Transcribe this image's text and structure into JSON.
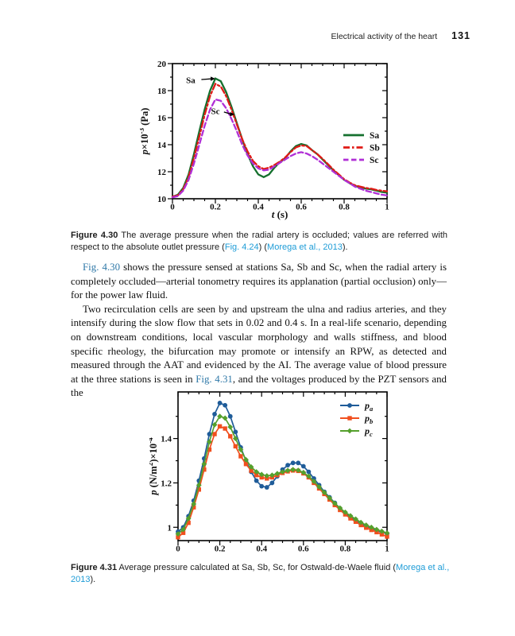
{
  "page": {
    "header": {
      "running_title": "Electrical activity of the heart",
      "page_number": "131"
    }
  },
  "colors": {
    "caption_link": "#1e9cd7",
    "body_link": "#3079a8",
    "sa_green": "#15702e",
    "sb_red": "#e01a16",
    "sc_magenta": "#b02fd6",
    "pa_blue": "#1f5c99",
    "pb_orange": "#f14f1e",
    "pc_green": "#55a02d",
    "axis": "#000000"
  },
  "figure30": {
    "caption": [
      {
        "t": "Figure 4.30",
        "b": 1
      },
      {
        "t": " The average pressure when the radial artery is occluded; values are referred with respect to the absolute outlet pressure ("
      },
      {
        "t": "Fig. 4.24",
        "link": 1
      },
      {
        "t": ") ("
      },
      {
        "t": "Morega et al., 2013",
        "link": 1
      },
      {
        "t": ")."
      }
    ]
  },
  "figure31": {
    "caption": [
      {
        "t": "Figure 4.31",
        "b": 1
      },
      {
        "t": "  Average pressure calculated at Sa, Sb, Sc, for Ostwald-de-Waele fluid ("
      },
      {
        "t": "Morega et al., 2013",
        "link": 1
      },
      {
        "t": ")."
      }
    ]
  },
  "body": {
    "paragraphs": [
      [
        {
          "t": "Fig. 4.30",
          "link": 1
        },
        {
          "t": " shows the pressure sensed at stations Sa, Sb and Sc, when the radial artery is completely occluded—arterial tonometry requires its applanation (partial occlusion) only—for the power law fluid."
        }
      ],
      [
        {
          "t": "Two recirculation cells are seen by and upstream the ulna and radius arteries, and they intensify during the slow flow that sets in 0.02 and 0.4 s. In a real-life scenario, depending on downstream conditions, local vascular morphology and walls stiffness, and blood specific rheology, the bifurcation may promote or intensify an RPW, as detected and measured through the AAT and evidenced by the AI. The average value of blood pressure at the three stations is seen in "
        },
        {
          "t": "Fig. 4.31",
          "link": 1
        },
        {
          "t": ", and the voltages produced by the PZT sensors and the"
        }
      ]
    ]
  },
  "chart_data": [
    {
      "type": "line",
      "title": "",
      "xlabel": "t (s)",
      "ylabel": "p×10^-3 (Pa)",
      "xlabel_parts": [
        {
          "t": "t",
          "i": 1
        },
        {
          "t": " (s)"
        }
      ],
      "ylabel_parts": [
        {
          "t": "p",
          "i": 1
        },
        {
          "t": "×10"
        },
        {
          "t": "-3",
          "sup": 1
        },
        {
          "t": " (Pa)"
        }
      ],
      "xlim": [
        0,
        1
      ],
      "ylim": [
        10,
        20
      ],
      "xticks": [
        0,
        0.2,
        0.4,
        0.6,
        0.8,
        1
      ],
      "xtick_labels": [
        "0",
        "0.2",
        "0.4",
        "0.6",
        "0.8",
        "1"
      ],
      "yticks": [
        10,
        12,
        14,
        16,
        18,
        20
      ],
      "ytick_labels": [
        "10",
        "12",
        "14",
        "16",
        "18",
        "20"
      ],
      "x_minor": [
        0.05,
        0.1,
        0.15,
        0.25,
        0.3,
        0.35,
        0.45,
        0.5,
        0.55,
        0.65,
        0.7,
        0.75,
        0.85,
        0.9,
        0.95
      ],
      "y_minor": [
        11,
        13,
        15,
        17,
        19
      ],
      "grid": false,
      "legend_position": "middle-right",
      "x": [
        0,
        0.025,
        0.05,
        0.075,
        0.1,
        0.125,
        0.15,
        0.175,
        0.2,
        0.225,
        0.25,
        0.275,
        0.3,
        0.325,
        0.35,
        0.375,
        0.4,
        0.425,
        0.45,
        0.475,
        0.5,
        0.525,
        0.55,
        0.575,
        0.6,
        0.625,
        0.65,
        0.675,
        0.7,
        0.725,
        0.75,
        0.775,
        0.8,
        0.825,
        0.85,
        0.875,
        0.9,
        0.925,
        0.95,
        0.975,
        1
      ],
      "series": [
        {
          "name": "Sa",
          "color": "#15702e",
          "style": "solid",
          "marker": null,
          "values": [
            10.15,
            10.3,
            10.8,
            11.8,
            13.3,
            15.0,
            16.6,
            18.0,
            18.9,
            18.7,
            17.9,
            16.8,
            15.6,
            14.4,
            13.3,
            12.4,
            11.8,
            11.6,
            11.8,
            12.3,
            12.7,
            13.0,
            13.5,
            13.9,
            14.05,
            13.95,
            13.6,
            13.3,
            12.9,
            12.5,
            12.1,
            11.75,
            11.4,
            11.15,
            10.95,
            10.85,
            10.75,
            10.7,
            10.6,
            10.5,
            10.45
          ]
        },
        {
          "name": "Sb",
          "color": "#e01a16",
          "style": "dash-dot",
          "marker": null,
          "values": [
            10.15,
            10.25,
            10.7,
            11.6,
            13.0,
            14.6,
            16.2,
            17.6,
            18.5,
            18.3,
            17.6,
            16.6,
            15.5,
            14.4,
            13.5,
            12.8,
            12.4,
            12.2,
            12.3,
            12.5,
            12.75,
            13.05,
            13.45,
            13.8,
            13.95,
            13.9,
            13.6,
            13.3,
            12.95,
            12.55,
            12.15,
            11.8,
            11.45,
            11.2,
            11.0,
            10.9,
            10.8,
            10.75,
            10.65,
            10.6,
            10.55
          ]
        },
        {
          "name": "Sc",
          "color": "#b02fd6",
          "style": "dashed",
          "marker": null,
          "values": [
            10.1,
            10.2,
            10.6,
            11.4,
            12.6,
            14.0,
            15.4,
            16.6,
            17.35,
            17.25,
            16.7,
            15.9,
            15.0,
            14.0,
            13.2,
            12.6,
            12.25,
            12.1,
            12.15,
            12.4,
            12.65,
            12.9,
            13.15,
            13.35,
            13.45,
            13.35,
            13.15,
            12.9,
            12.6,
            12.3,
            12.0,
            11.7,
            11.4,
            11.15,
            10.9,
            10.75,
            10.6,
            10.5,
            10.4,
            10.3,
            10.25
          ]
        }
      ],
      "annotations": [
        {
          "text": "Sa",
          "text_x": 0.085,
          "text_y": 18.8,
          "arrow_from_x": 0.135,
          "arrow_from_y": 18.82,
          "arrow_to_x": 0.2,
          "arrow_to_y": 18.88
        },
        {
          "text": "Sc",
          "text_x": 0.2,
          "text_y": 16.5,
          "arrow_from_x": 0.24,
          "arrow_from_y": 16.42,
          "arrow_to_x": 0.29,
          "arrow_to_y": 16.25
        }
      ]
    },
    {
      "type": "line",
      "title": "",
      "xlabel": "",
      "ylabel": "p (N/m^2)×10^-4",
      "xlabel_parts": [],
      "ylabel_parts": [
        {
          "t": "p",
          "i": 1
        },
        {
          "t": " (N/m"
        },
        {
          "t": "2",
          "sup": 1
        },
        {
          "t": ")×10"
        },
        {
          "t": "-4",
          "sup": 1
        }
      ],
      "xlim": [
        0,
        1
      ],
      "ylim": [
        0.94,
        1.61
      ],
      "xticks": [
        0,
        0.2,
        0.4,
        0.6,
        0.8,
        1
      ],
      "xtick_labels": [
        "0",
        "0.2",
        "0.4",
        "0.6",
        "0.8",
        "1"
      ],
      "yticks": [
        1,
        1.2,
        1.4
      ],
      "ytick_labels": [
        "1",
        "1.2",
        "1.4"
      ],
      "x_minor": [
        0.05,
        0.1,
        0.15,
        0.25,
        0.3,
        0.35,
        0.45,
        0.5,
        0.55,
        0.65,
        0.7,
        0.75,
        0.85,
        0.9,
        0.95
      ],
      "y_minor": [
        1.1,
        1.3,
        1.5
      ],
      "grid": false,
      "legend_position": "top-right",
      "x": [
        0,
        0.025,
        0.05,
        0.075,
        0.1,
        0.125,
        0.15,
        0.175,
        0.2,
        0.225,
        0.25,
        0.275,
        0.3,
        0.325,
        0.35,
        0.375,
        0.4,
        0.425,
        0.45,
        0.475,
        0.5,
        0.525,
        0.55,
        0.575,
        0.6,
        0.625,
        0.65,
        0.675,
        0.7,
        0.725,
        0.75,
        0.775,
        0.8,
        0.825,
        0.85,
        0.875,
        0.9,
        0.925,
        0.95,
        0.975,
        1
      ],
      "series": [
        {
          "name": "p_a",
          "legend_main": "p",
          "legend_sub": "a",
          "color": "#1f5c99",
          "style": "solid",
          "marker": "circle",
          "values": [
            0.98,
            1.0,
            1.05,
            1.12,
            1.21,
            1.31,
            1.42,
            1.51,
            1.56,
            1.55,
            1.5,
            1.43,
            1.36,
            1.3,
            1.25,
            1.21,
            1.185,
            1.18,
            1.2,
            1.23,
            1.26,
            1.28,
            1.29,
            1.29,
            1.275,
            1.25,
            1.22,
            1.19,
            1.16,
            1.135,
            1.11,
            1.085,
            1.065,
            1.045,
            1.03,
            1.015,
            1.005,
            0.995,
            0.985,
            0.978,
            0.972
          ]
        },
        {
          "name": "p_b",
          "legend_main": "p",
          "legend_sub": "b",
          "color": "#f14f1e",
          "style": "solid",
          "marker": "square",
          "values": [
            0.955,
            0.975,
            1.02,
            1.09,
            1.17,
            1.26,
            1.35,
            1.42,
            1.455,
            1.445,
            1.41,
            1.365,
            1.32,
            1.285,
            1.255,
            1.235,
            1.225,
            1.22,
            1.225,
            1.235,
            1.245,
            1.252,
            1.256,
            1.254,
            1.243,
            1.225,
            1.2,
            1.175,
            1.15,
            1.125,
            1.1,
            1.078,
            1.058,
            1.04,
            1.025,
            1.01,
            0.998,
            0.988,
            0.978,
            0.968,
            0.958
          ]
        },
        {
          "name": "p_c",
          "legend_main": "p",
          "legend_sub": "c",
          "color": "#55a02d",
          "style": "solid",
          "marker": "diamond",
          "values": [
            0.97,
            0.99,
            1.04,
            1.105,
            1.19,
            1.285,
            1.385,
            1.462,
            1.5,
            1.492,
            1.452,
            1.4,
            1.35,
            1.305,
            1.272,
            1.25,
            1.238,
            1.232,
            1.235,
            1.242,
            1.25,
            1.256,
            1.26,
            1.257,
            1.247,
            1.23,
            1.207,
            1.182,
            1.157,
            1.132,
            1.108,
            1.087,
            1.068,
            1.052,
            1.037,
            1.022,
            1.01,
            1.0,
            0.99,
            0.982,
            0.974
          ]
        }
      ],
      "annotations": []
    }
  ]
}
